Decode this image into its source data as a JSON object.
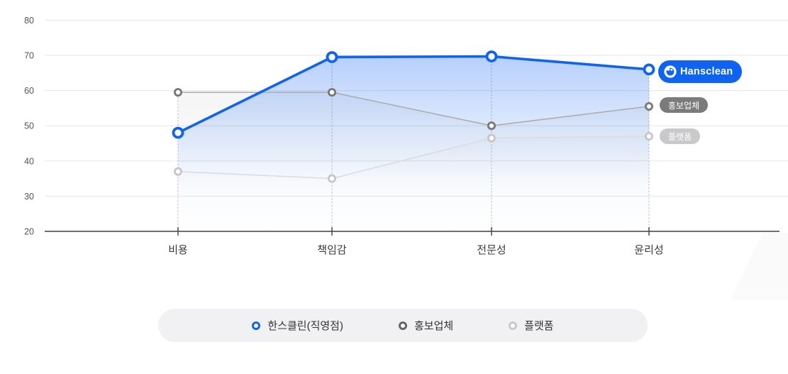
{
  "chart_data": {
    "type": "line",
    "title": "",
    "categories": [
      "비용",
      "책임감",
      "전문성",
      "윤리성"
    ],
    "yticks": [
      80,
      70,
      60,
      50,
      40,
      30,
      20
    ],
    "ylim": [
      20,
      80
    ],
    "grid": true,
    "legend_position": "bottom",
    "series": [
      {
        "name": "한스클린(직영점)",
        "badge_label": "Hansclean",
        "values": [
          48,
          69.5,
          69.7,
          66
        ],
        "color": "#0f63f2",
        "line_color": "#0f63f2",
        "line_width": 3.6,
        "marker_radius": 6.5,
        "marker_stroke": 3.8,
        "area_opacity": 0.3
      },
      {
        "name": "홍보업체",
        "badge_label": "홍보업체",
        "values": [
          59.5,
          59.5,
          50,
          55.5
        ],
        "color": "#7a7a7a",
        "line_color": "#adadad",
        "line_width": 1.6,
        "marker_radius": 4.6,
        "marker_stroke": 2.9,
        "area_opacity": 0.12
      },
      {
        "name": "플랫폼",
        "badge_label": "플랫폼",
        "values": [
          37,
          35,
          46.5,
          47
        ],
        "color": "#c7c7c7",
        "line_color": "#dcdcdc",
        "line_width": 1.6,
        "marker_radius": 4.6,
        "marker_stroke": 2.9,
        "area_opacity": 0.1
      }
    ]
  },
  "legend": {
    "items": [
      {
        "label": "한스클린(직영점)",
        "color": "#0f63f2"
      },
      {
        "label": "홍보업체",
        "color": "#666666"
      },
      {
        "label": "플랫폼",
        "color": "#c9c9c9"
      }
    ]
  },
  "colors": {
    "accent_blue": "#0f63f2",
    "grid_line": "#e5e5e7",
    "axis_line": "#3f3f3f",
    "dropline": "#c8c8cc",
    "y_label": "#555555",
    "x_label": "#3a3a3a",
    "legend_bg": "#f1f1f3"
  }
}
